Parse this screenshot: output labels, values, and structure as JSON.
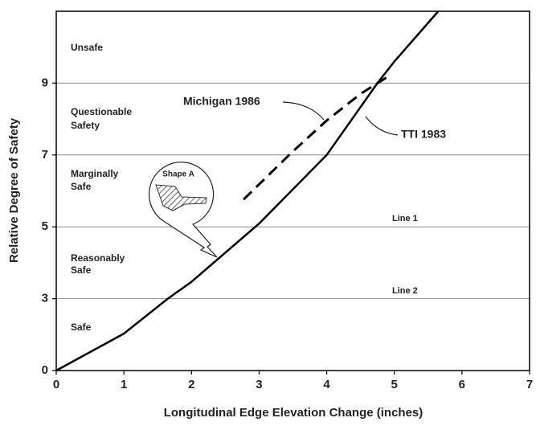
{
  "chart_data": {
    "type": "line",
    "x_label": "Longitudinal Edge Elevation Change (inches)",
    "y_label": "Relative Degree of Safety",
    "xlim": [
      0,
      7
    ],
    "xticks": [
      0,
      1,
      2,
      3,
      4,
      5,
      6,
      7
    ],
    "ylim": [
      0,
      11
    ],
    "yticks": [
      0,
      3,
      5,
      7,
      9
    ],
    "grid": true,
    "series": [
      {
        "name": "TTI 1983",
        "color": "#000000",
        "linestyle": "solid",
        "x": [
          0,
          1,
          1.65,
          2,
          3,
          4,
          4.75,
          5,
          5.65
        ],
        "values": [
          0,
          1.54,
          3,
          3.47,
          5.09,
          7,
          9,
          9.6,
          11
        ]
      },
      {
        "name": "Michigan 1986",
        "color": "#000000",
        "linestyle": "dashed",
        "x": [
          2.77,
          3.5,
          4,
          4.5,
          4.92
        ],
        "values": [
          5.76,
          7.1,
          7.96,
          8.7,
          9.2
        ]
      }
    ],
    "zones": [
      [
        "Unsafe"
      ],
      [
        "Questionable",
        "Safety"
      ],
      [
        "Marginally",
        "Safe"
      ],
      [
        "Reasonably",
        "Safe"
      ],
      [
        "Safe"
      ]
    ],
    "line_labels": [
      "Line 1",
      "Line 2"
    ],
    "callout": "Shape A"
  }
}
